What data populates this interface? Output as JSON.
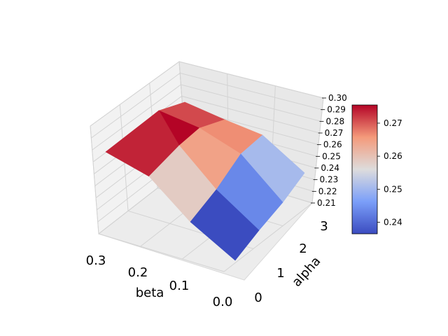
{
  "chart_data": {
    "type": "surface3d",
    "xlabel": "beta",
    "ylabel": "alpha",
    "zlabel": "",
    "x_ticks": [
      "0.3",
      "0.2",
      "0.1",
      "0.0"
    ],
    "y_ticks": [
      "0",
      "1",
      "2",
      "3"
    ],
    "z_ticks": [
      "0.21",
      "0.22",
      "0.23",
      "0.24",
      "0.25",
      "0.26",
      "0.27",
      "0.28",
      "0.29",
      "0.30"
    ],
    "zlim": [
      0.21,
      0.3
    ],
    "colormap": "coolwarm",
    "colorbar": {
      "ticks": [
        "0.24",
        "0.25",
        "0.26",
        "0.27"
      ],
      "range": [
        0.2365,
        0.2755
      ]
    },
    "grid": true,
    "beta": [
      0.3,
      0.2,
      0.1,
      0.0
    ],
    "alpha": [
      0,
      1,
      2,
      3
    ],
    "z": [
      [
        0.252,
        0.254,
        0.256,
        0.258
      ],
      [
        0.268,
        0.274,
        0.278,
        0.282
      ],
      [
        0.266,
        0.27,
        0.272,
        0.274
      ],
      [
        0.245,
        0.25,
        0.255,
        0.258
      ]
    ],
    "cell_colors": [
      [
        0.2735,
        0.2755,
        0.271
      ],
      [
        0.2585,
        0.2645,
        0.2665
      ],
      [
        0.2365,
        0.2435,
        0.2505
      ]
    ]
  }
}
